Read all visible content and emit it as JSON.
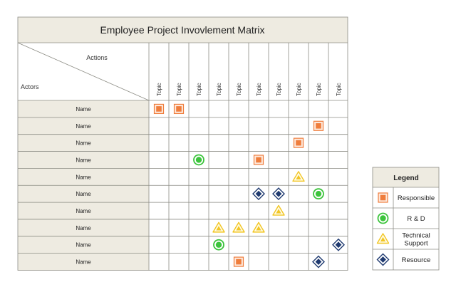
{
  "title": "Employee Project Invovlement Matrix",
  "corner": {
    "top_label": "Actions",
    "bottom_label": "Actors"
  },
  "columns": [
    "Topic",
    "Topic",
    "Topic",
    "Topic",
    "Topic",
    "Topic",
    "Topic",
    "Topic",
    "Topic",
    "Topic"
  ],
  "rows": [
    {
      "name": "Name",
      "cells": [
        "responsible",
        "responsible",
        "",
        "",
        "",
        "",
        "",
        "",
        "",
        ""
      ]
    },
    {
      "name": "Name",
      "cells": [
        "",
        "",
        "",
        "",
        "",
        "",
        "",
        "",
        "responsible",
        ""
      ]
    },
    {
      "name": "Name",
      "cells": [
        "",
        "",
        "",
        "",
        "",
        "",
        "",
        "responsible",
        "",
        ""
      ]
    },
    {
      "name": "Name",
      "cells": [
        "",
        "",
        "rd",
        "",
        "",
        "responsible",
        "",
        "",
        "",
        ""
      ]
    },
    {
      "name": "Name",
      "cells": [
        "",
        "",
        "",
        "",
        "",
        "",
        "",
        "technical",
        "",
        ""
      ]
    },
    {
      "name": "Name",
      "cells": [
        "",
        "",
        "",
        "",
        "",
        "resource",
        "resource",
        "",
        "rd",
        ""
      ]
    },
    {
      "name": "Name",
      "cells": [
        "",
        "",
        "",
        "",
        "",
        "",
        "technical",
        "",
        "",
        ""
      ]
    },
    {
      "name": "Name",
      "cells": [
        "",
        "",
        "",
        "technical",
        "technical",
        "technical",
        "",
        "",
        "",
        ""
      ]
    },
    {
      "name": "Name",
      "cells": [
        "",
        "",
        "",
        "rd",
        "",
        "",
        "",
        "",
        "",
        "resource"
      ]
    },
    {
      "name": "Name",
      "cells": [
        "",
        "",
        "",
        "",
        "responsible",
        "",
        "",
        "",
        "resource",
        ""
      ]
    }
  ],
  "legend": {
    "title": "Legend",
    "items": [
      {
        "key": "responsible",
        "label": [
          "Responsible"
        ],
        "icon": "orange-square-icon"
      },
      {
        "key": "rd",
        "label": [
          "R & D"
        ],
        "icon": "green-circle-icon"
      },
      {
        "key": "technical",
        "label": [
          "Technical",
          "Support"
        ],
        "icon": "yellow-triangle-icon"
      },
      {
        "key": "resource",
        "label": [
          "Resource"
        ],
        "icon": "navy-diamond-icon"
      }
    ]
  },
  "colors": {
    "header_bg": "#eeebe1",
    "border": "#8c8c84",
    "responsible": "#ef7d3c",
    "rd": "#3cc43c",
    "technical": "#f2c624",
    "resource": "#1f3a70"
  }
}
